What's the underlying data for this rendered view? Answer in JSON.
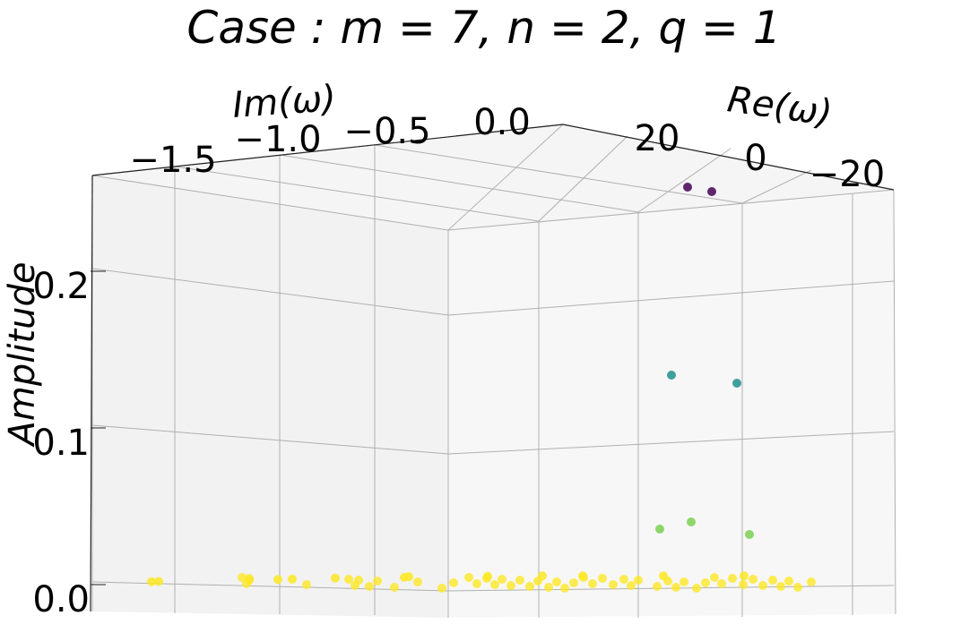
{
  "chart_data": {
    "type": "scatter",
    "title": "Case  : m = 7, n = 2, q = 1",
    "xlabel": "Re(ω)",
    "ylabel": "Im(ω)",
    "zlabel": "Amplitude",
    "x_ticks": [
      "20",
      "0",
      "−20"
    ],
    "y_ticks": [
      "−1.5",
      "−1.0",
      "−0.5",
      "0.0"
    ],
    "z_ticks": [
      "0.0",
      "0.1",
      "0.2"
    ],
    "zlim": [
      0,
      0.26
    ],
    "grid": true,
    "colormap": "viridis",
    "colors": {
      "high": "#440154",
      "mid": "#21918c",
      "low2": "#7ad151",
      "low": "#fde725"
    },
    "points": [
      {
        "re": 10,
        "im": 0.0,
        "amp": 0.25
      },
      {
        "re": -10,
        "im": 0.0,
        "amp": 0.25
      },
      {
        "re": 18,
        "im": 0.0,
        "amp": 0.13
      },
      {
        "re": -10,
        "im": 0.0,
        "amp": 0.13
      },
      {
        "re": 22,
        "im": 0.0,
        "amp": 0.035
      },
      {
        "re": 10,
        "im": 0.0,
        "amp": 0.04
      },
      {
        "re": -8,
        "im": 0.0,
        "amp": 0.03
      },
      {
        "re": 25,
        "im": -1.6,
        "amp": 0.005
      },
      {
        "re": 25,
        "im": -1.55,
        "amp": 0.005
      },
      {
        "re": 20,
        "im": -1.2,
        "amp": 0.005
      },
      {
        "re": 20,
        "im": -1.0,
        "amp": 0.005
      },
      {
        "re": 20,
        "im": -0.9,
        "amp": 0.005
      },
      {
        "re": 20,
        "im": -0.6,
        "amp": 0.005
      },
      {
        "re": 15,
        "im": -0.4,
        "amp": 0.005
      },
      {
        "re": 18,
        "im": -0.2,
        "amp": 0.005
      },
      {
        "re": 10,
        "im": -0.1,
        "amp": 0.005
      },
      {
        "re": 5,
        "im": 0.0,
        "amp": 0.005
      },
      {
        "re": 0,
        "im": 0.0,
        "amp": 0.005
      },
      {
        "re": -10,
        "im": 0.0,
        "amp": 0.005
      },
      {
        "re": -20,
        "im": 0.0,
        "amp": 0.005
      }
    ]
  }
}
